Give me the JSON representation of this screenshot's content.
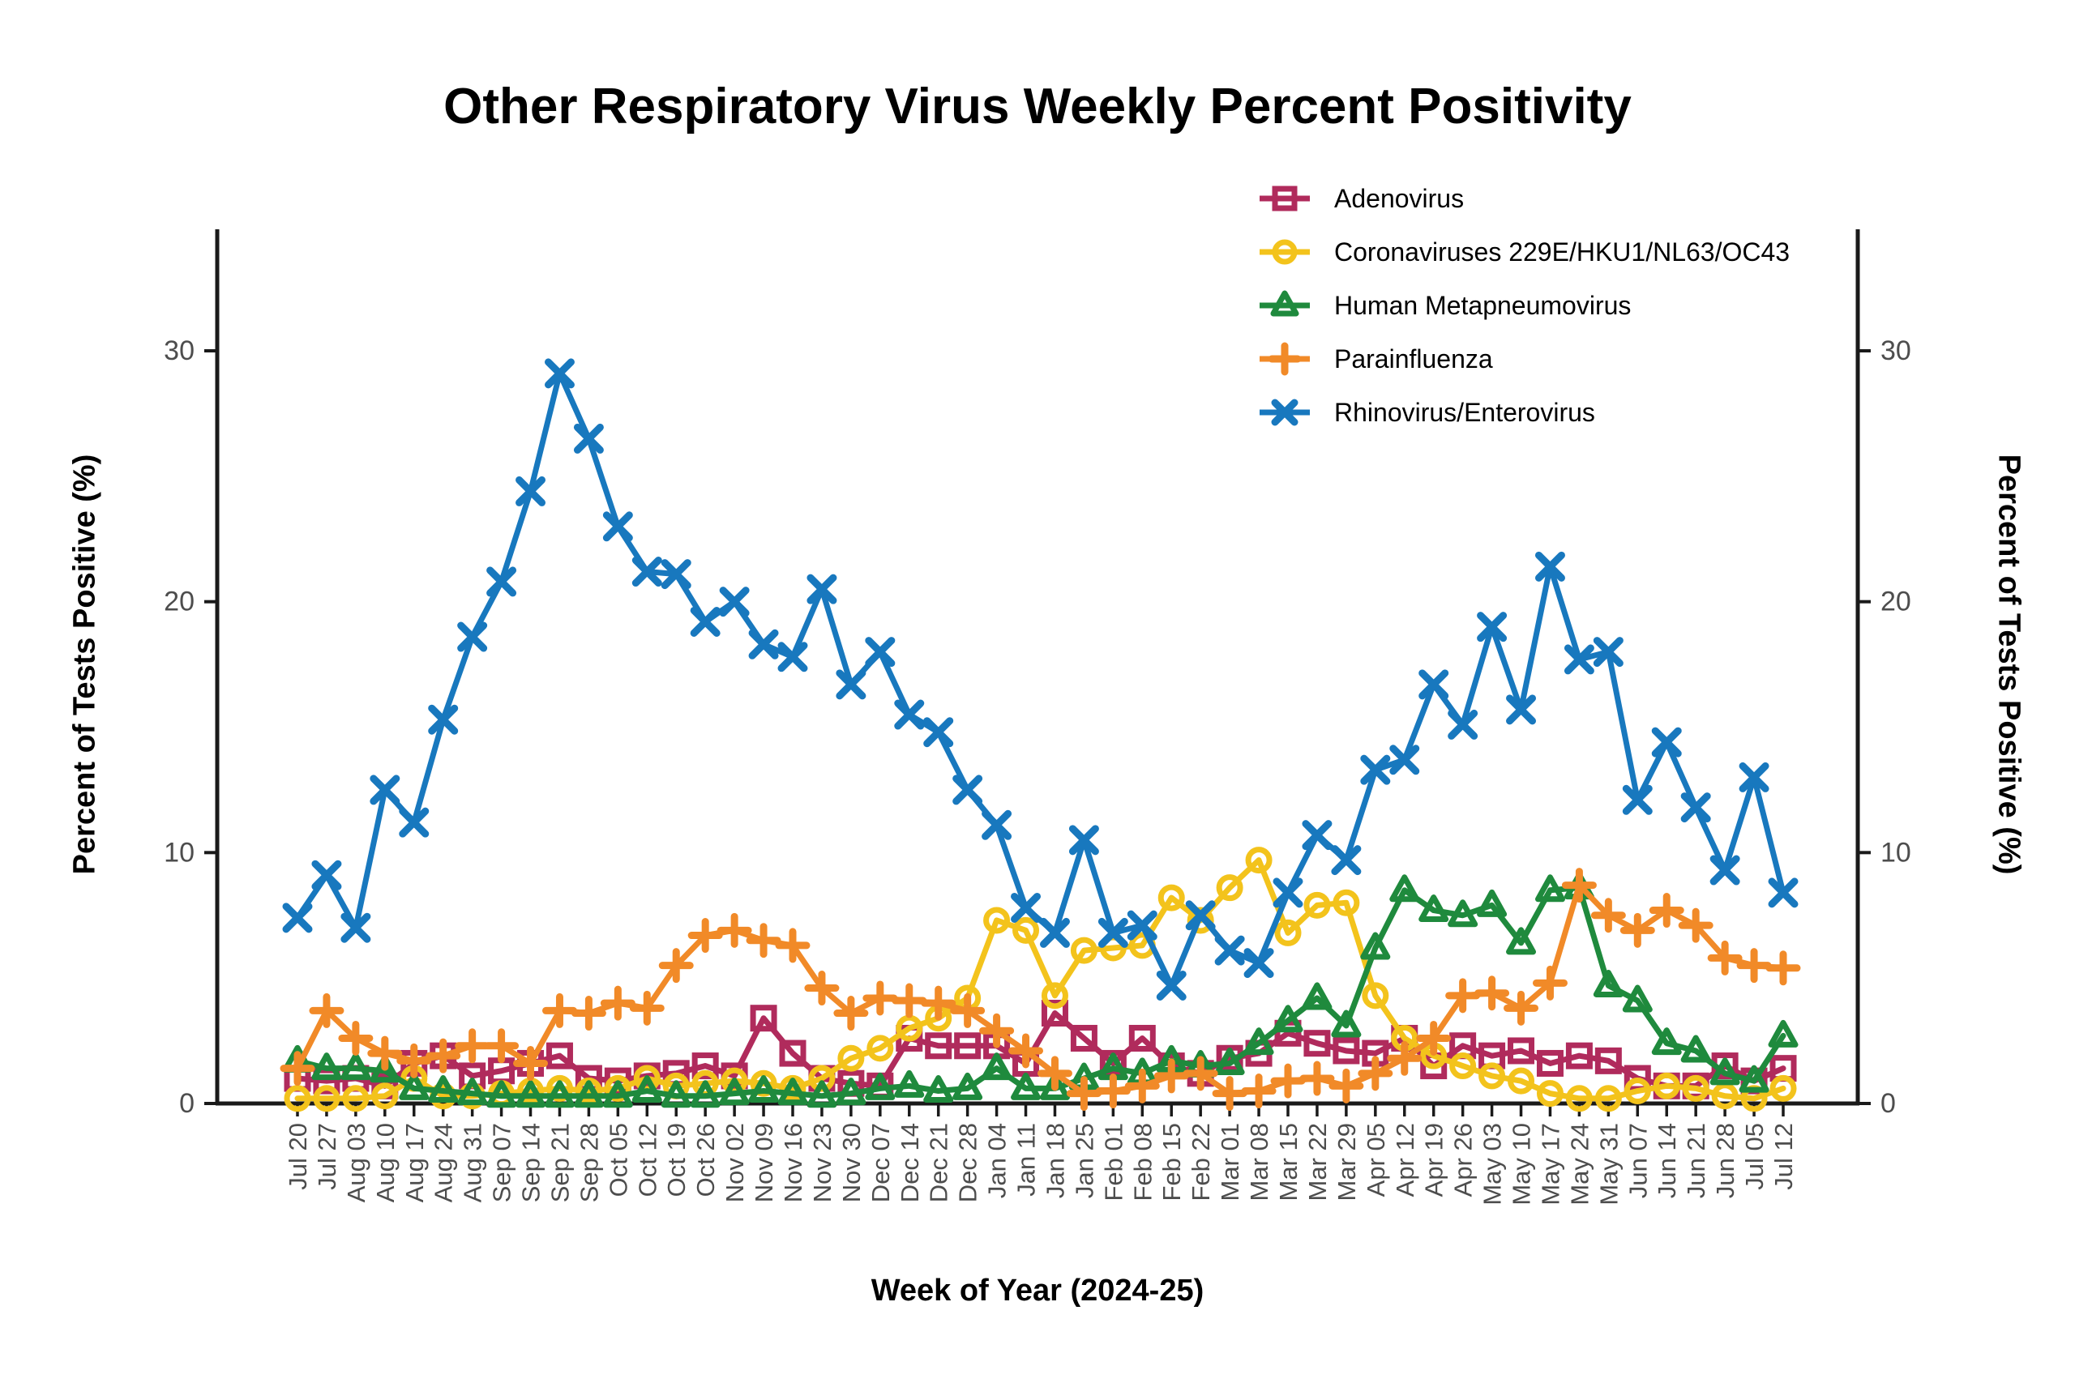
{
  "chart_data": {
    "type": "line",
    "title": "Other Respiratory Virus Weekly Percent Positivity",
    "xlabel": "Week of Year (2024-25)",
    "ylabel_left": "Percent of Tests Positive (%)",
    "ylabel_right": "Percent of Tests Positive (%)",
    "ylim": [
      0,
      34.5
    ],
    "yticks": [
      0,
      10,
      20,
      30
    ],
    "grid": false,
    "legend_position": "top-right-inside",
    "tick_label_color": "#4d4d4d",
    "axis_color": "#1a1a1a",
    "categories": [
      "Jul 20",
      "Jul 27",
      "Aug 03",
      "Aug 10",
      "Aug 17",
      "Aug 24",
      "Aug 31",
      "Sep 07",
      "Sep 14",
      "Sep 21",
      "Sep 28",
      "Oct 05",
      "Oct 12",
      "Oct 19",
      "Oct 26",
      "Nov 02",
      "Nov 09",
      "Nov 16",
      "Nov 23",
      "Nov 30",
      "Dec 07",
      "Dec 14",
      "Dec 21",
      "Dec 28",
      "Jan 04",
      "Jan 11",
      "Jan 18",
      "Jan 25",
      "Feb 01",
      "Feb 08",
      "Feb 15",
      "Feb 22",
      "Mar 01",
      "Mar 08",
      "Mar 15",
      "Mar 22",
      "Mar 29",
      "Apr 05",
      "Apr 12",
      "Apr 19",
      "Apr 26",
      "May 03",
      "May 10",
      "May 17",
      "May 24",
      "May 31",
      "Jun 07",
      "Jun 14",
      "Jun 21",
      "Jun 28",
      "Jul 05",
      "Jul 12"
    ],
    "series": [
      {
        "name": "Adenovirus",
        "color": "#B02B5C",
        "marker": "square",
        "values": [
          1.0,
          0.9,
          1.0,
          0.7,
          1.6,
          1.9,
          1.1,
          1.3,
          1.6,
          1.9,
          1.0,
          0.9,
          1.1,
          1.2,
          1.5,
          1.1,
          3.4,
          2.0,
          1.0,
          0.8,
          0.7,
          2.6,
          2.3,
          2.3,
          2.3,
          1.6,
          3.6,
          2.6,
          1.6,
          2.6,
          1.5,
          1.2,
          1.8,
          2.0,
          2.8,
          2.4,
          2.1,
          2.0,
          2.6,
          1.5,
          2.3,
          1.9,
          2.1,
          1.6,
          1.9,
          1.7,
          1.0,
          0.7,
          0.7,
          1.5,
          0.9,
          1.4
        ]
      },
      {
        "name": "Coronaviruses 229E/HKU1/NL63/OC43",
        "color": "#F3C31C",
        "marker": "circle",
        "values": [
          0.2,
          0.2,
          0.2,
          0.3,
          1.0,
          0.3,
          0.3,
          0.4,
          0.5,
          0.6,
          0.5,
          0.6,
          1.0,
          0.7,
          0.8,
          0.9,
          0.8,
          0.6,
          1.0,
          1.8,
          2.2,
          3.0,
          3.4,
          4.2,
          7.3,
          6.9,
          4.3,
          6.1,
          6.2,
          6.3,
          8.2,
          7.3,
          8.6,
          9.7,
          6.8,
          7.9,
          8.0,
          4.3,
          2.6,
          1.9,
          1.5,
          1.1,
          0.9,
          0.4,
          0.2,
          0.2,
          0.5,
          0.7,
          0.6,
          0.3,
          0.2,
          0.6
        ]
      },
      {
        "name": "Human Metapneumovirus",
        "color": "#1F8A3D",
        "marker": "triangle",
        "values": [
          1.7,
          1.4,
          1.4,
          1.3,
          0.6,
          0.5,
          0.4,
          0.3,
          0.3,
          0.3,
          0.3,
          0.3,
          0.5,
          0.3,
          0.3,
          0.4,
          0.5,
          0.4,
          0.3,
          0.4,
          0.6,
          0.7,
          0.5,
          0.6,
          1.4,
          0.6,
          0.6,
          1.0,
          1.4,
          1.2,
          1.7,
          1.5,
          1.6,
          2.4,
          3.3,
          4.2,
          3.1,
          6.2,
          8.5,
          7.7,
          7.5,
          7.9,
          6.4,
          8.5,
          8.6,
          4.7,
          4.1,
          2.4,
          2.1,
          1.2,
          0.9,
          2.7
        ]
      },
      {
        "name": "Parainfluenza",
        "color": "#F18A28",
        "marker": "plus",
        "values": [
          1.4,
          3.7,
          2.6,
          2.0,
          1.7,
          1.9,
          2.3,
          2.3,
          1.6,
          3.7,
          3.6,
          4.0,
          3.8,
          5.5,
          6.7,
          6.9,
          6.5,
          6.3,
          4.6,
          3.6,
          4.2,
          4.1,
          4.0,
          3.7,
          2.9,
          2.1,
          1.2,
          0.4,
          0.5,
          0.7,
          1.1,
          1.2,
          0.4,
          0.5,
          0.9,
          1.0,
          0.7,
          1.2,
          1.8,
          2.6,
          4.3,
          4.4,
          3.8,
          4.8,
          8.7,
          7.5,
          6.9,
          7.7,
          7.1,
          5.8,
          5.5,
          5.4
        ]
      },
      {
        "name": "Rhinovirus/Enterovirus",
        "color": "#1878BE",
        "marker": "x",
        "values": [
          7.4,
          9.1,
          7.0,
          12.5,
          11.2,
          15.3,
          18.6,
          20.8,
          24.4,
          29.1,
          26.5,
          23.0,
          21.2,
          21.1,
          19.2,
          20.0,
          18.3,
          17.8,
          20.5,
          16.7,
          18.0,
          15.5,
          14.8,
          12.5,
          11.1,
          7.8,
          6.8,
          10.5,
          6.8,
          7.1,
          4.7,
          7.5,
          6.1,
          5.6,
          8.4,
          10.7,
          9.7,
          13.3,
          13.7,
          16.7,
          15.1,
          19.0,
          15.7,
          21.4,
          17.7,
          18.0,
          12.1,
          14.4,
          11.8,
          9.3,
          13.0,
          8.4
        ]
      }
    ]
  }
}
